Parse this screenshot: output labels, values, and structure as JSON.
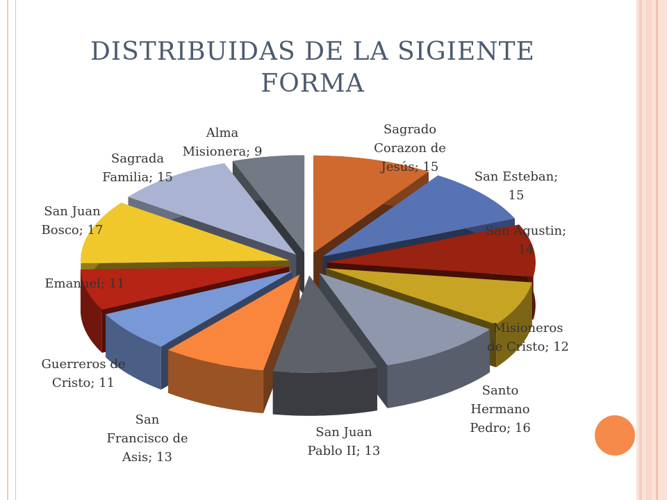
{
  "title_lines": [
    "DISTRIBUIDAS DE LA SIGIENTE",
    "FORMA"
  ],
  "chart_data": {
    "type": "pie",
    "title": "DISTRIBUIDAS DE LA SIGIENTE FORMA",
    "slices": [
      {
        "label": "Sagrado Corazon de Jesús; 15",
        "name": "Sagrado Corazon de Jesús",
        "value": 15,
        "color": "#d0692e"
      },
      {
        "label": "San Esteban; 15",
        "name": "San Esteban",
        "value": 15,
        "color": "#5773b4"
      },
      {
        "label": "San Agustin; 14",
        "name": "San Agustin",
        "value": 14,
        "color": "#9a2210"
      },
      {
        "label": "Misioneros de Cristo; 12",
        "name": "Misioneros de Cristo",
        "value": 12,
        "color": "#c8a424"
      },
      {
        "label": "Santo Hermano Pedro; 16",
        "name": "Santo Hermano Pedro",
        "value": 16,
        "color": "#8e97ac"
      },
      {
        "label": "San Juan Pablo II; 13",
        "name": "San Juan Pablo II",
        "value": 13,
        "color": "#5d6169"
      },
      {
        "label": "San Francisco de Asis; 13",
        "name": "San Francisco de Asis",
        "value": 13,
        "color": "#f9863c"
      },
      {
        "label": "Guerreros de Cristo; 11",
        "name": "Guerreros de Cristo",
        "value": 11,
        "color": "#7898d8"
      },
      {
        "label": "Emanuel; 11",
        "name": "Emanuel",
        "value": 11,
        "color": "#b52414"
      },
      {
        "label": "San Juan Bosco; 17",
        "name": "San Juan Bosco",
        "value": 17,
        "color": "#f0c82c"
      },
      {
        "label": "Sagrada Familia; 15",
        "name": "Sagrada Familia",
        "value": 15,
        "color": "#aab4d2"
      },
      {
        "label": "Alma Misionera; 9",
        "name": "Alma Misionera",
        "value": 9,
        "color": "#737a85"
      }
    ],
    "label_lines": [
      [
        "Sagrado",
        "Corazon de",
        "Jesús; 15"
      ],
      [
        "San Esteban;",
        "15"
      ],
      [
        "San Agustin;",
        "14"
      ],
      [
        "Misioneros",
        "de Cristo; 12"
      ],
      [
        "Santo",
        "Hermano",
        "Pedro; 16"
      ],
      [
        "San Juan",
        "Pablo II; 13"
      ],
      [
        "San",
        "Francisco de",
        "Asis; 13"
      ],
      [
        "Guerreros de",
        "Cristo; 11"
      ],
      [
        "Emanuel; 11"
      ],
      [
        "San Juan",
        "Bosco; 17"
      ],
      [
        "Sagrada",
        "Familia; 15"
      ],
      [
        "Alma",
        "Misionera; 9"
      ]
    ],
    "exploded": true,
    "three_d": true,
    "legend": "none",
    "label_text_color": "#333333"
  },
  "theme": {
    "title_color": "#4c5b6e",
    "accent_dot_color": "#f58a4a"
  }
}
